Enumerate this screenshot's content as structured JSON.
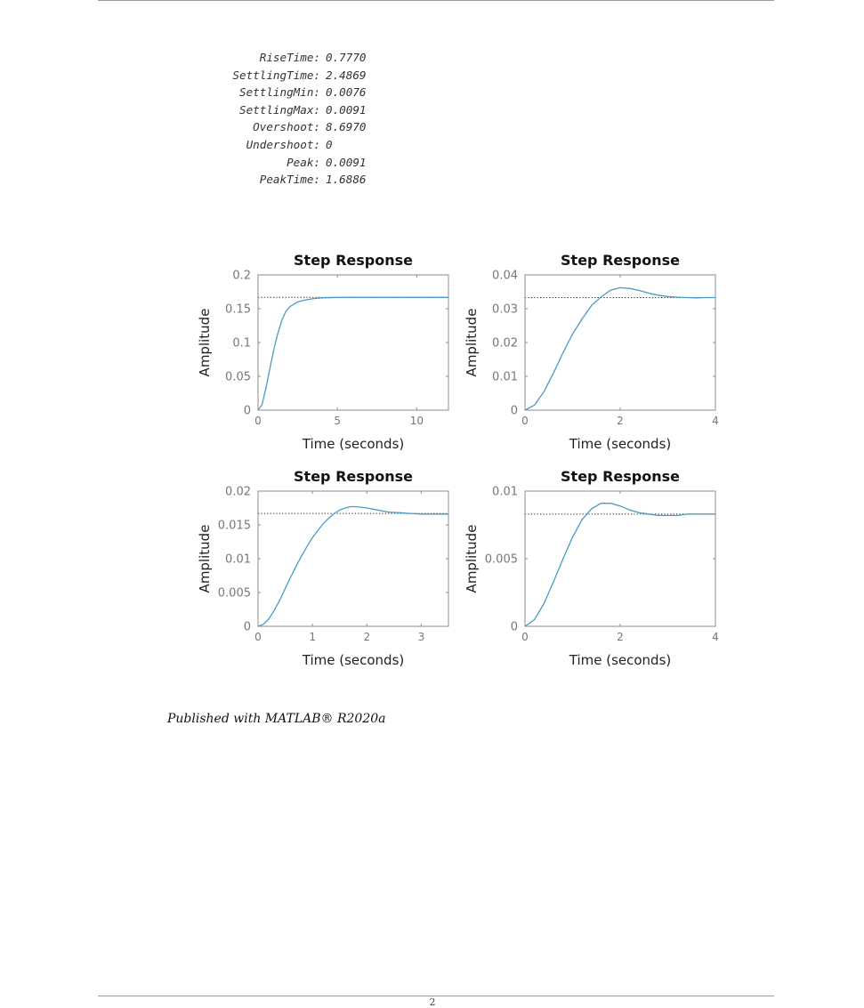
{
  "stats": [
    {
      "key": "RiseTime:",
      "value": "0.7770"
    },
    {
      "key": "SettlingTime:",
      "value": "2.4869"
    },
    {
      "key": "SettlingMin:",
      "value": "0.0076"
    },
    {
      "key": "SettlingMax:",
      "value": "0.0091"
    },
    {
      "key": "Overshoot:",
      "value": "8.6970"
    },
    {
      "key": "Undershoot:",
      "value": "0"
    },
    {
      "key": "Peak:",
      "value": "0.0091"
    },
    {
      "key": "PeakTime:",
      "value": "1.6886"
    }
  ],
  "footer": {
    "published": "Published with MATLAB® R2020a"
  },
  "page_number": "2",
  "colors": {
    "line": "#4a9bc4",
    "axis": "#8c8c8c",
    "tick_text": "#777777"
  },
  "chart_data": [
    {
      "type": "line",
      "title": "Step Response",
      "xlabel": "Time (seconds)",
      "ylabel": "Amplitude",
      "xlim": [
        0,
        12
      ],
      "ylim": [
        0,
        0.2
      ],
      "xticks": [
        0,
        5,
        10
      ],
      "xtick_labels": [
        "0",
        "5",
        "10"
      ],
      "yticks": [
        0,
        0.05,
        0.1,
        0.15,
        0.2
      ],
      "ytick_labels": [
        "0",
        "0.05",
        "0.1",
        "0.15",
        "0.2"
      ],
      "steady_state": 0.1667,
      "x": [
        0,
        0.25,
        0.5,
        0.75,
        1.0,
        1.25,
        1.5,
        1.75,
        2.0,
        2.5,
        3.0,
        3.5,
        4.0,
        5.0,
        6.0,
        8.0,
        10.0,
        12.0
      ],
      "y": [
        0,
        0.008,
        0.033,
        0.062,
        0.09,
        0.114,
        0.133,
        0.146,
        0.153,
        0.16,
        0.163,
        0.165,
        0.166,
        0.1667,
        0.1667,
        0.1667,
        0.1667,
        0.1667
      ]
    },
    {
      "type": "line",
      "title": "Step Response",
      "xlabel": "Time (seconds)",
      "ylabel": "Amplitude",
      "xlim": [
        0,
        4
      ],
      "ylim": [
        0,
        0.04
      ],
      "xticks": [
        0,
        2,
        4
      ],
      "xtick_labels": [
        "0",
        "2",
        "4"
      ],
      "yticks": [
        0,
        0.01,
        0.02,
        0.03,
        0.04
      ],
      "ytick_labels": [
        "0",
        "0.01",
        "0.02",
        "0.03",
        "0.04"
      ],
      "steady_state": 0.0333,
      "x": [
        0,
        0.2,
        0.4,
        0.6,
        0.8,
        1.0,
        1.2,
        1.4,
        1.6,
        1.8,
        2.0,
        2.2,
        2.4,
        2.6,
        2.8,
        3.0,
        3.2,
        3.4,
        3.6,
        3.8,
        4.0
      ],
      "y": [
        0,
        0.0015,
        0.0055,
        0.011,
        0.017,
        0.0225,
        0.027,
        0.031,
        0.0335,
        0.0355,
        0.0362,
        0.036,
        0.0354,
        0.0346,
        0.034,
        0.0336,
        0.0334,
        0.0333,
        0.0332,
        0.0333,
        0.0333
      ]
    },
    {
      "type": "line",
      "title": "Step Response",
      "xlabel": "Time (seconds)",
      "ylabel": "Amplitude",
      "xlim": [
        0,
        3.5
      ],
      "ylim": [
        0,
        0.02
      ],
      "xticks": [
        0,
        1,
        2,
        3
      ],
      "xtick_labels": [
        "0",
        "1",
        "2",
        "3"
      ],
      "yticks": [
        0,
        0.005,
        0.01,
        0.015,
        0.02
      ],
      "ytick_labels": [
        "0",
        "0.005",
        "0.01",
        "0.015",
        "0.02"
      ],
      "steady_state": 0.0167,
      "x": [
        0,
        0.1,
        0.2,
        0.3,
        0.4,
        0.5,
        0.6,
        0.7,
        0.8,
        0.9,
        1.0,
        1.1,
        1.2,
        1.3,
        1.4,
        1.5,
        1.6,
        1.7,
        1.8,
        2.0,
        2.2,
        2.4,
        2.6,
        2.8,
        3.0,
        3.2,
        3.5
      ],
      "y": [
        0,
        0.0003,
        0.0011,
        0.0024,
        0.0039,
        0.0056,
        0.0073,
        0.0089,
        0.0104,
        0.0118,
        0.0131,
        0.0142,
        0.0152,
        0.016,
        0.0167,
        0.0172,
        0.0175,
        0.0177,
        0.0177,
        0.0175,
        0.0172,
        0.0169,
        0.0168,
        0.0167,
        0.0166,
        0.0166,
        0.0166
      ]
    },
    {
      "type": "line",
      "title": "Step Response",
      "xlabel": "Time (seconds)",
      "ylabel": "Amplitude",
      "xlim": [
        0,
        4
      ],
      "ylim": [
        0,
        0.01
      ],
      "xticks": [
        0,
        2,
        4
      ],
      "xtick_labels": [
        "0",
        "2",
        "4"
      ],
      "yticks": [
        0,
        0.005,
        0.01
      ],
      "ytick_labels": [
        "0",
        "0.005",
        "0.01"
      ],
      "steady_state": 0.0083,
      "x": [
        0,
        0.2,
        0.4,
        0.6,
        0.8,
        1.0,
        1.2,
        1.4,
        1.6,
        1.8,
        2.0,
        2.2,
        2.4,
        2.6,
        2.8,
        3.0,
        3.2,
        3.4,
        3.6,
        3.8,
        4.0
      ],
      "y": [
        0,
        0.0005,
        0.0017,
        0.0033,
        0.005,
        0.0066,
        0.0079,
        0.0087,
        0.0091,
        0.0091,
        0.0089,
        0.0086,
        0.0084,
        0.0083,
        0.0082,
        0.0082,
        0.0082,
        0.0083,
        0.0083,
        0.0083,
        0.0083
      ]
    }
  ]
}
